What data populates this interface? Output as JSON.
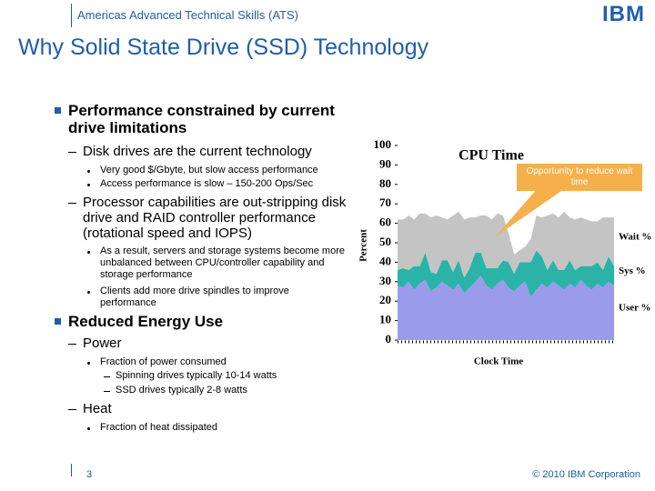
{
  "header": {
    "org": "Americas Advanced Technical Skills (ATS)",
    "logo": "IBM",
    "title": "Why Solid State Drive (SSD) Technology"
  },
  "bullets": [
    {
      "text": "Performance constrained by current drive limitations",
      "children": [
        {
          "text": "Disk drives are the current technology",
          "children": [
            "Very good $/Gbyte, but slow access performance",
            "Access performance is slow – 150-200 Ops/Sec"
          ]
        },
        {
          "text": "Processor capabilities are out-stripping disk drive and RAID controller performance (rotational speed and IOPS)",
          "children": [
            "As a result, servers and storage systems become more unbalanced between CPU/controller capability and storage performance",
            "Clients add more drive spindles to improve performance"
          ]
        }
      ]
    },
    {
      "text": "Reduced Energy Use",
      "children": [
        {
          "text": "Power",
          "children": [
            {
              "text": "Fraction of power consumed",
              "children": [
                "Spinning drives typically 10-14 watts",
                "SSD drives typically 2-8 watts"
              ]
            }
          ]
        },
        {
          "text": "Heat",
          "children": [
            {
              "text": "Fraction of heat dissipated"
            }
          ]
        }
      ]
    }
  ],
  "chart_data": {
    "type": "stacked-area",
    "title": "CPU Time",
    "x_label": "Clock Time",
    "y_label": "Percent",
    "annotation": "Opportunity to reduce wait time",
    "ylim": [
      0,
      100
    ],
    "yticks": [
      0,
      10,
      20,
      30,
      40,
      50,
      60,
      70,
      80,
      90,
      100
    ],
    "series": [
      {
        "name": "User %",
        "color": "#9b9bec",
        "values": [
          28,
          27,
          30,
          26,
          29,
          31,
          25,
          27,
          30,
          28,
          26,
          29,
          24,
          27,
          30,
          33,
          28,
          26,
          29,
          31,
          27,
          25,
          28,
          30,
          22,
          26,
          29,
          27,
          30,
          28,
          26,
          29,
          27,
          31,
          28,
          26,
          29,
          27,
          30,
          28
        ]
      },
      {
        "name": "Sys %",
        "color": "#2bb3a8",
        "values": [
          8,
          10,
          6,
          12,
          9,
          14,
          10,
          7,
          11,
          13,
          9,
          12,
          8,
          10,
          15,
          12,
          9,
          11,
          8,
          10,
          13,
          9,
          12,
          10,
          18,
          20,
          14,
          9,
          11,
          8,
          10,
          12,
          9,
          7,
          10,
          12,
          11,
          9,
          13,
          10
        ]
      },
      {
        "name": "Wait %",
        "color": "#c4c4c4",
        "values": [
          26,
          25,
          28,
          24,
          27,
          20,
          28,
          30,
          22,
          21,
          29,
          25,
          30,
          26,
          18,
          19,
          27,
          25,
          28,
          23,
          15,
          10,
          6,
          8,
          12,
          18,
          20,
          28,
          24,
          27,
          30,
          22,
          26,
          25,
          24,
          23,
          21,
          27,
          20,
          25
        ]
      }
    ]
  },
  "footer": {
    "page": "3",
    "copyright": "© 2010 IBM Corporation"
  }
}
